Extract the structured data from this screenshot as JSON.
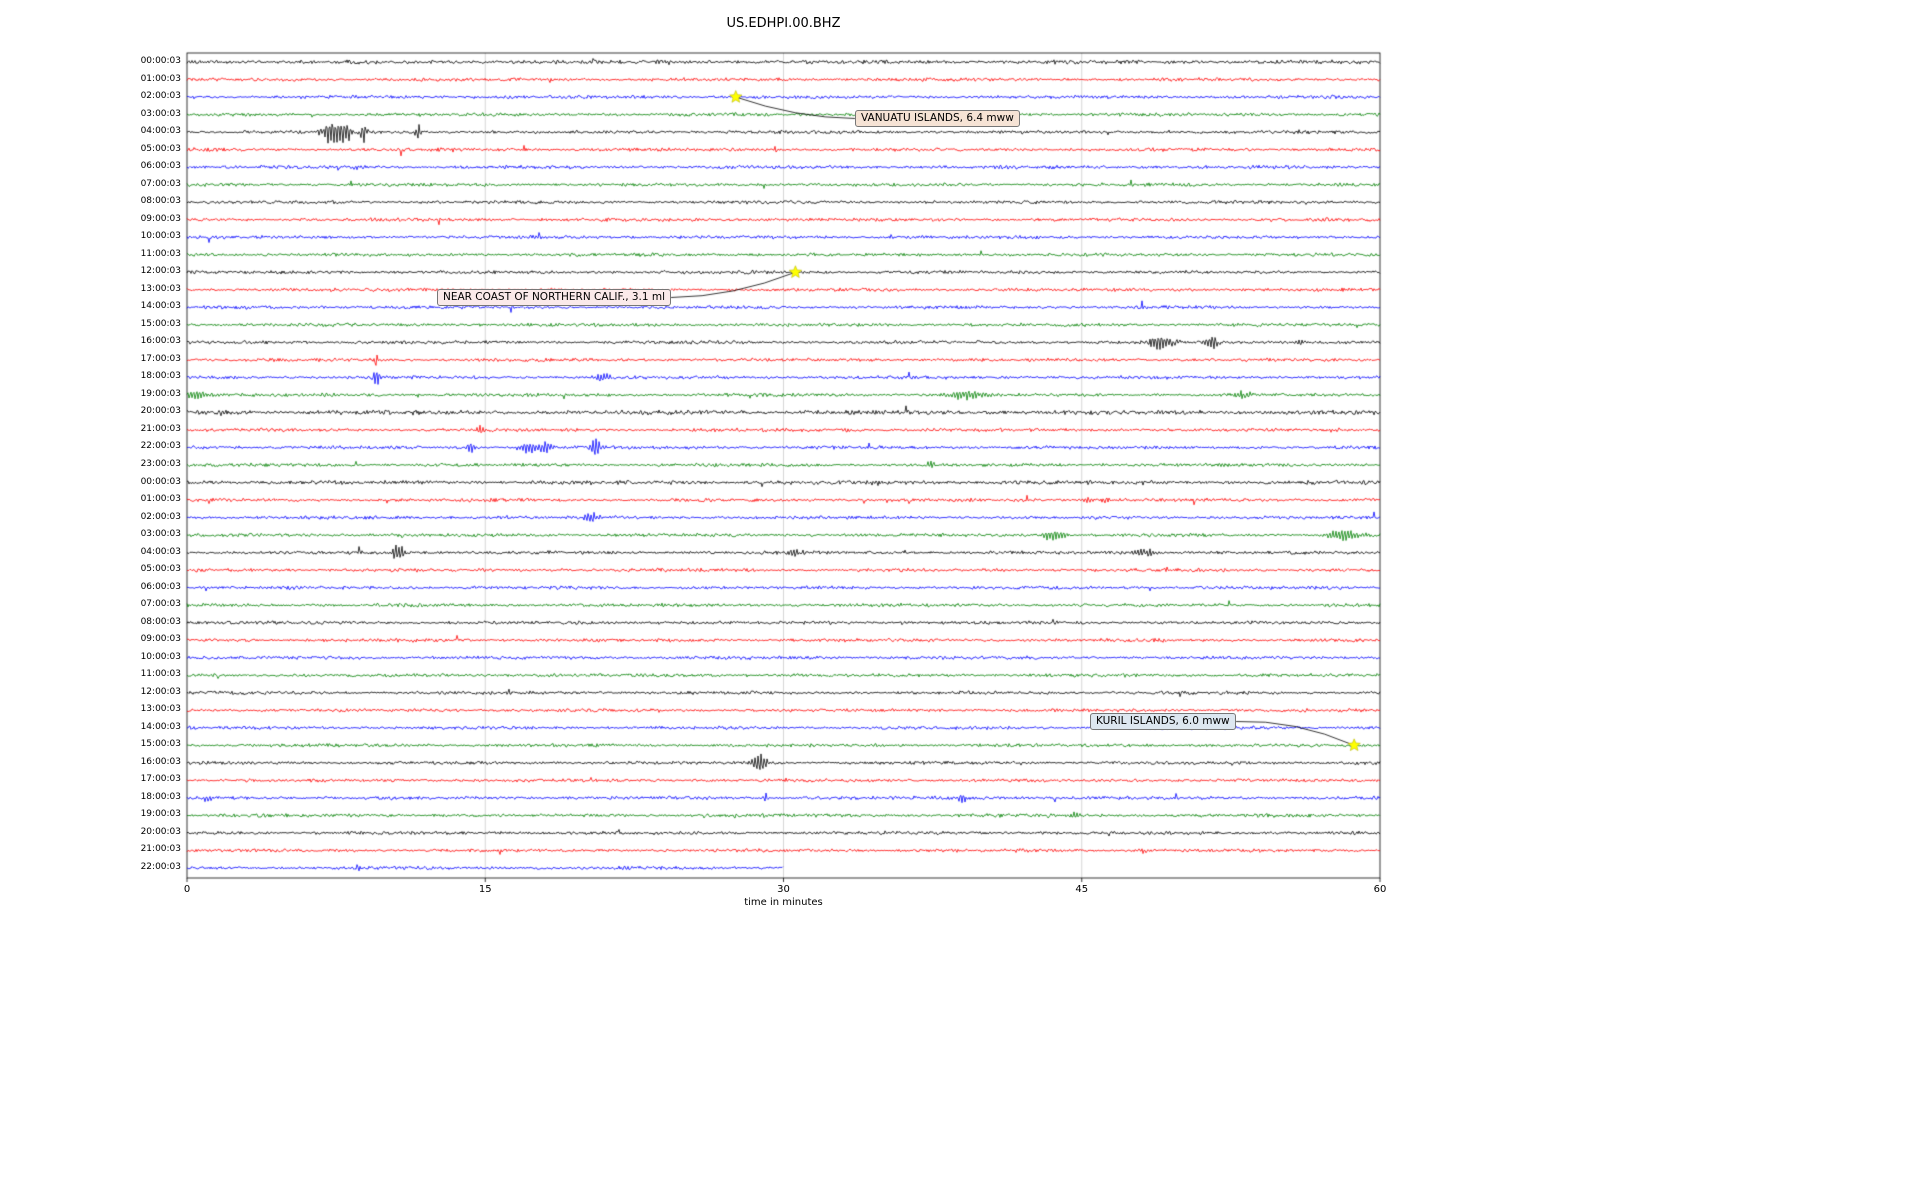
{
  "chart_data": {
    "type": "line",
    "variant": "helicorder-dayplot-seismogram",
    "title": "US.EDHPI.00.BHZ",
    "xlabel": "time in minutes",
    "xlim": [
      0,
      60
    ],
    "x_ticks": [
      "0",
      "15",
      "30",
      "45",
      "60"
    ],
    "grid": {
      "vertical_minutes": [
        15,
        30,
        45
      ],
      "color": "#cccccc"
    },
    "marker_color": "#ffff00",
    "color_cycle": [
      "#000000",
      "#ff0000",
      "#0000ff",
      "#008000"
    ],
    "rows": [
      {
        "label": "00:00:03",
        "color": "#000000",
        "amp": 1.3
      },
      {
        "label": "01:00:03",
        "color": "#ff0000"
      },
      {
        "label": "02:00:03",
        "color": "#0000ff"
      },
      {
        "label": "03:00:03",
        "color": "#008000"
      },
      {
        "label": "04:00:03",
        "color": "#000000",
        "bursts": [
          {
            "x": 7.3,
            "a": 10,
            "w": 0.5
          },
          {
            "x": 8.0,
            "a": 8,
            "w": 0.3
          },
          {
            "x": 8.9,
            "a": 9,
            "w": 0.15
          },
          {
            "x": 11.6,
            "a": 8,
            "w": 0.15
          }
        ]
      },
      {
        "label": "05:00:03",
        "color": "#ff0000",
        "bursts": [
          {
            "x": 13.4,
            "a": 3,
            "w": 0.1
          },
          {
            "x": 29.6,
            "a": 3,
            "w": 0.1
          }
        ]
      },
      {
        "label": "06:00:03",
        "color": "#0000ff",
        "bursts": [
          {
            "x": 8.6,
            "a": 2.5,
            "w": 0.3
          }
        ]
      },
      {
        "label": "07:00:03",
        "color": "#008000"
      },
      {
        "label": "08:00:03",
        "color": "#000000"
      },
      {
        "label": "09:00:03",
        "color": "#ff0000"
      },
      {
        "label": "10:00:03",
        "color": "#0000ff"
      },
      {
        "label": "11:00:03",
        "color": "#008000"
      },
      {
        "label": "12:00:03",
        "color": "#000000"
      },
      {
        "label": "13:00:03",
        "color": "#ff0000"
      },
      {
        "label": "14:00:03",
        "color": "#0000ff"
      },
      {
        "label": "15:00:03",
        "color": "#008000"
      },
      {
        "label": "16:00:03",
        "color": "#000000",
        "bursts": [
          {
            "x": 49.0,
            "a": 6,
            "w": 0.7
          },
          {
            "x": 51.6,
            "a": 6,
            "w": 0.3
          },
          {
            "x": 56.0,
            "a": 2.5,
            "w": 0.3
          }
        ]
      },
      {
        "label": "17:00:03",
        "color": "#ff0000",
        "bursts": [
          {
            "x": 9.5,
            "a": 5,
            "w": 0.12
          }
        ]
      },
      {
        "label": "18:00:03",
        "color": "#0000ff",
        "bursts": [
          {
            "x": 9.5,
            "a": 8,
            "w": 0.2
          },
          {
            "x": 20.9,
            "a": 4,
            "w": 0.5
          }
        ]
      },
      {
        "label": "19:00:03",
        "color": "#008000",
        "bursts": [
          {
            "x": 0.6,
            "a": 4,
            "w": 0.7
          },
          {
            "x": 39.2,
            "a": 4,
            "w": 1.0
          },
          {
            "x": 53.2,
            "a": 2.5,
            "w": 0.4
          }
        ]
      },
      {
        "label": "20:00:03",
        "color": "#000000",
        "amp": 1.5
      },
      {
        "label": "21:00:03",
        "color": "#ff0000",
        "bursts": [
          {
            "x": 14.8,
            "a": 5,
            "w": 0.15
          },
          {
            "x": 33.2,
            "a": 2,
            "w": 0.2
          },
          {
            "x": 57.7,
            "a": 2,
            "w": 0.3
          }
        ]
      },
      {
        "label": "22:00:03",
        "color": "#0000ff",
        "bursts": [
          {
            "x": 14.3,
            "a": 6,
            "w": 0.2
          },
          {
            "x": 17.2,
            "a": 5,
            "w": 0.6
          },
          {
            "x": 18.1,
            "a": 5,
            "w": 0.3
          },
          {
            "x": 20.5,
            "a": 8,
            "w": 0.25
          }
        ]
      },
      {
        "label": "23:00:03",
        "color": "#008000",
        "bursts": [
          {
            "x": 37.4,
            "a": 3,
            "w": 0.3
          }
        ]
      },
      {
        "label": "00:00:03",
        "color": "#000000",
        "amp": 1.3,
        "bursts": [
          {
            "x": 34.6,
            "a": 2.5,
            "w": 0.2
          }
        ]
      },
      {
        "label": "01:00:03",
        "color": "#ff0000",
        "bursts": [
          {
            "x": 45.3,
            "a": 3,
            "w": 0.3
          },
          {
            "x": 46.2,
            "a": 3,
            "w": 0.2
          }
        ]
      },
      {
        "label": "02:00:03",
        "color": "#0000ff",
        "bursts": [
          {
            "x": 20.4,
            "a": 4,
            "w": 0.5
          }
        ]
      },
      {
        "label": "03:00:03",
        "color": "#008000",
        "bursts": [
          {
            "x": 43.6,
            "a": 4,
            "w": 0.7
          },
          {
            "x": 58.2,
            "a": 4,
            "w": 0.9
          }
        ]
      },
      {
        "label": "04:00:03",
        "color": "#000000",
        "bursts": [
          {
            "x": 10.6,
            "a": 9,
            "w": 0.3
          },
          {
            "x": 30.6,
            "a": 3,
            "w": 0.4
          },
          {
            "x": 48.2,
            "a": 4,
            "w": 0.5
          }
        ]
      },
      {
        "label": "05:00:03",
        "color": "#ff0000",
        "bursts": [
          {
            "x": 49.3,
            "a": 2.5,
            "w": 0.3
          }
        ]
      },
      {
        "label": "06:00:03",
        "color": "#0000ff"
      },
      {
        "label": "07:00:03",
        "color": "#008000"
      },
      {
        "label": "08:00:03",
        "color": "#000000"
      },
      {
        "label": "09:00:03",
        "color": "#ff0000"
      },
      {
        "label": "10:00:03",
        "color": "#0000ff"
      },
      {
        "label": "11:00:03",
        "color": "#008000"
      },
      {
        "label": "12:00:03",
        "color": "#000000"
      },
      {
        "label": "13:00:03",
        "color": "#ff0000"
      },
      {
        "label": "14:00:03",
        "color": "#0000ff"
      },
      {
        "label": "15:00:03",
        "color": "#008000"
      },
      {
        "label": "16:00:03",
        "color": "#000000",
        "bursts": [
          {
            "x": 28.8,
            "a": 8,
            "w": 0.4
          }
        ]
      },
      {
        "label": "17:00:03",
        "color": "#ff0000"
      },
      {
        "label": "18:00:03",
        "color": "#0000ff",
        "bursts": [
          {
            "x": 1.0,
            "a": 3,
            "w": 0.2
          },
          {
            "x": 3.0,
            "a": 2.5,
            "w": 0.15
          },
          {
            "x": 29.1,
            "a": 5,
            "w": 0.12
          },
          {
            "x": 39.0,
            "a": 4,
            "w": 0.2
          }
        ]
      },
      {
        "label": "19:00:03",
        "color": "#008000",
        "bursts": [
          {
            "x": 29.2,
            "a": 2.5,
            "w": 0.2
          },
          {
            "x": 44.6,
            "a": 2.5,
            "w": 0.3
          }
        ]
      },
      {
        "label": "20:00:03",
        "color": "#000000"
      },
      {
        "label": "21:00:03",
        "color": "#ff0000",
        "bursts": [
          {
            "x": 48.1,
            "a": 2.5,
            "w": 0.2
          }
        ]
      },
      {
        "label": "22:00:03",
        "color": "#0000ff",
        "extent": [
          0,
          30
        ],
        "bursts": [
          {
            "x": 8.6,
            "a": 3,
            "w": 0.12
          }
        ]
      }
    ],
    "annotations": [
      {
        "label": "VANUATU ISLANDS, 6.4 mww",
        "row": 2,
        "x_min": 27.6,
        "marker": "yellow-star",
        "box_bg": "#f6e3d5"
      },
      {
        "label": "NEAR COAST OF NORTHERN CALIF., 3.1 ml",
        "row": 12,
        "x_min": 30.6,
        "marker": "yellow-star",
        "box_bg": "#fbeaea"
      },
      {
        "label": "KURIL ISLANDS, 6.0 mww",
        "row": 39,
        "x_min": 58.7,
        "marker": "yellow-star",
        "box_bg": "#dde7f0"
      }
    ]
  }
}
